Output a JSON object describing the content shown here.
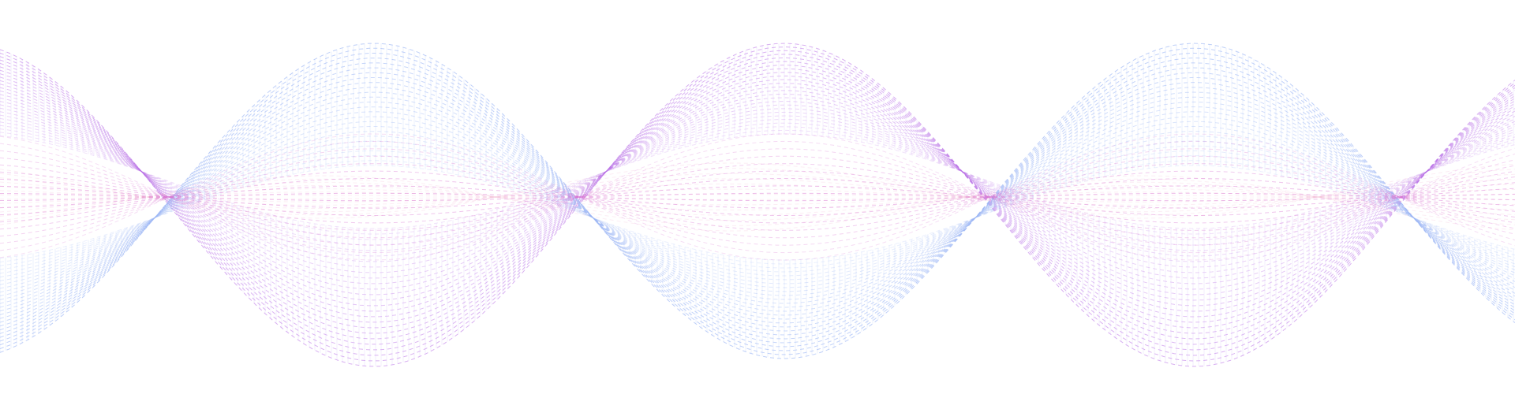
{
  "artwork": {
    "description_label": "",
    "background_color": "#ffffff",
    "colors": {
      "violet": "#b86ee6",
      "magenta": "#d76fd0",
      "pink": "#ef9ac1",
      "blue": "#9bb6f5",
      "lavender": "#c8a8f4"
    },
    "bands": [
      {
        "name": "upper-violet-band",
        "color": "violet"
      },
      {
        "name": "middle-pink-band",
        "color": "pink"
      },
      {
        "name": "lower-blue-band",
        "color": "blue"
      },
      {
        "name": "center-magenta-band",
        "color": "magenta"
      }
    ]
  }
}
